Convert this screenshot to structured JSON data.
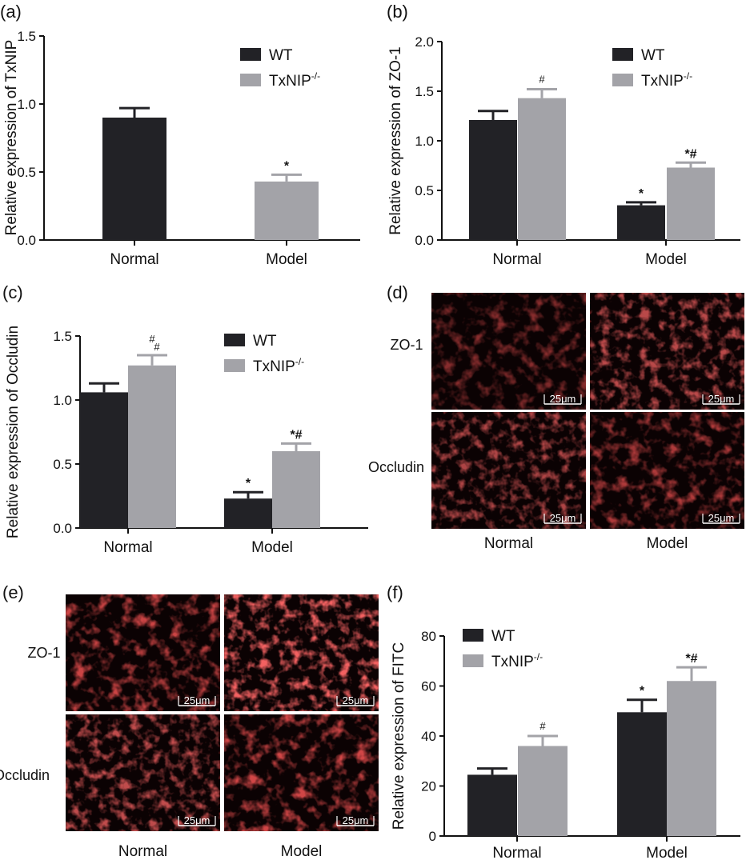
{
  "chart_data": [
    {
      "panel": "(a)",
      "type": "bar",
      "categories": [
        "Normal",
        "Model"
      ],
      "series": [
        {
          "name": "WT",
          "color": "#222226",
          "values": [
            0.9,
            null
          ],
          "errors": [
            0.07,
            null
          ],
          "marks": [
            "",
            ""
          ]
        },
        {
          "name": "TxNIP",
          "sup": "-/-",
          "color": "#a3a3a8",
          "values": [
            null,
            0.43
          ],
          "errors": [
            null,
            0.05
          ],
          "marks": [
            "",
            "*"
          ]
        }
      ],
      "ylabel": "Relative expression of TxNIP",
      "ylim": [
        0,
        1.5
      ],
      "yticks": [
        "0.0",
        "0.5",
        "1.0",
        "1.5"
      ],
      "legend": "top-right",
      "grid": false
    },
    {
      "panel": "(b)",
      "type": "bar",
      "categories": [
        "Normal",
        "Model"
      ],
      "series": [
        {
          "name": "WT",
          "color": "#222226",
          "values": [
            1.21,
            0.35
          ],
          "errors": [
            0.09,
            0.03
          ],
          "marks": [
            "",
            "*"
          ]
        },
        {
          "name": "TxNIP",
          "sup": "-/-",
          "color": "#a3a3a8",
          "values": [
            1.43,
            0.73
          ],
          "errors": [
            0.09,
            0.05
          ],
          "marks": [
            "#",
            "*#"
          ]
        }
      ],
      "ylabel": "Relative expression of ZO-1",
      "ylim": [
        0,
        2.0
      ],
      "yticks": [
        "0.0",
        "0.5",
        "1.0",
        "1.5",
        "2.0"
      ],
      "legend": "top-right",
      "grid": false
    },
    {
      "panel": "(c)",
      "type": "bar",
      "categories": [
        "Normal",
        "Model"
      ],
      "series": [
        {
          "name": "WT",
          "color": "#222226",
          "values": [
            1.06,
            0.23
          ],
          "errors": [
            0.07,
            0.05
          ],
          "marks": [
            "",
            "*"
          ]
        },
        {
          "name": "TxNIP",
          "sup": "-/-",
          "color": "#a3a3a8",
          "values": [
            1.27,
            0.6
          ],
          "errors": [
            0.08,
            0.06
          ],
          "marks": [
            "##",
            "*#"
          ]
        }
      ],
      "ylabel": "Relative expression of Occludin",
      "ylim": [
        0,
        1.5
      ],
      "yticks": [
        "0.0",
        "0.5",
        "1.0",
        "1.5"
      ],
      "legend": "top-right",
      "grid": false
    },
    {
      "panel": "(f)",
      "type": "bar",
      "categories": [
        "Normal",
        "Model"
      ],
      "series": [
        {
          "name": "WT",
          "color": "#222226",
          "values": [
            24.5,
            49.5
          ],
          "errors": [
            2.5,
            5.0
          ],
          "marks": [
            "",
            "*"
          ]
        },
        {
          "name": "TxNIP",
          "sup": "-/-",
          "color": "#a3a3a8",
          "values": [
            36.0,
            62.0
          ],
          "errors": [
            4.0,
            5.5
          ],
          "marks": [
            "#",
            "*#"
          ]
        }
      ],
      "ylabel": "Relative expression of FITC",
      "ylim": [
        0,
        80
      ],
      "yticks": [
        "0",
        "20",
        "40",
        "60",
        "80"
      ],
      "legend": "top-left",
      "grid": false
    }
  ],
  "micrographs": [
    {
      "panel": "(d)",
      "rows": [
        "ZO-1",
        "Occludin"
      ],
      "columns": [
        "Normal",
        "Model"
      ],
      "scale_bar": "25μm",
      "intensity": [
        [
          0.55,
          0.75
        ],
        [
          0.7,
          0.72
        ]
      ]
    },
    {
      "panel": "(e)",
      "rows": [
        "ZO-1",
        "Occludin"
      ],
      "columns": [
        "Normal",
        "Model"
      ],
      "scale_bar": "25μm",
      "intensity": [
        [
          0.85,
          1.0
        ],
        [
          0.78,
          0.88
        ]
      ]
    }
  ]
}
